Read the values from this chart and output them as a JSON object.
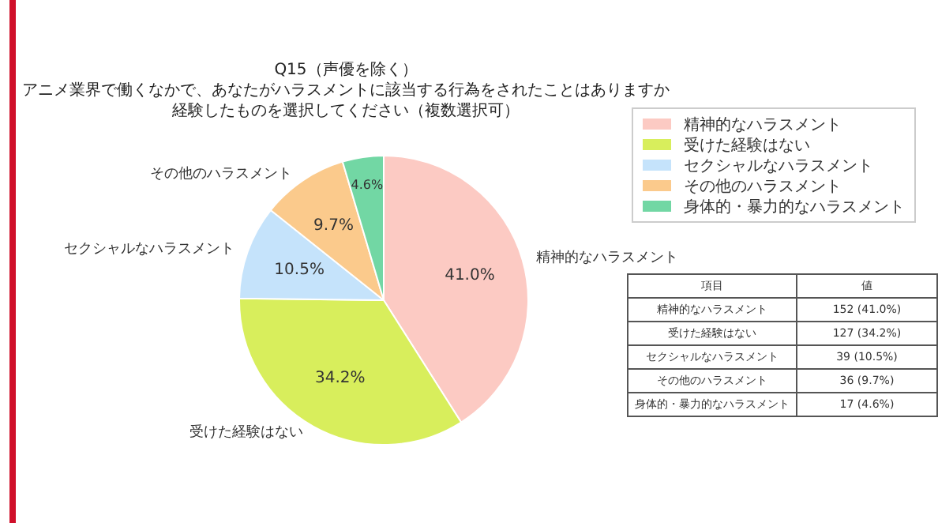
{
  "chart_data": {
    "type": "pie",
    "title": "Q15（声優を除く）",
    "subtitle": "アニメ業界で働くなかで、あなたがハラスメントに該当する行為をされたことはありますか経験したものを選択してください（複数選択可）",
    "categories": [
      "精神的なハラスメント",
      "受けた経験はない",
      "セクシャルなハラスメント",
      "その他のハラスメント",
      "身体的・暴力的なハラスメント"
    ],
    "values": [
      41.0,
      34.2,
      10.5,
      9.7,
      4.6
    ],
    "value_labels": [
      "41.0%",
      "34.2%",
      "10.5%",
      "9.7%",
      "4.6%"
    ],
    "colors": [
      "#fccac3",
      "#d8ee5c",
      "#c5e3fb",
      "#fbca8c",
      "#72d7a4"
    ],
    "legend": "top right",
    "annotations": [
      "項目",
      "値",
      "152 (41.0%)",
      "127 (34.2%)",
      "39 (10.5%)",
      "36 (9.7%)",
      "17 (4.6%)"
    ]
  }
}
